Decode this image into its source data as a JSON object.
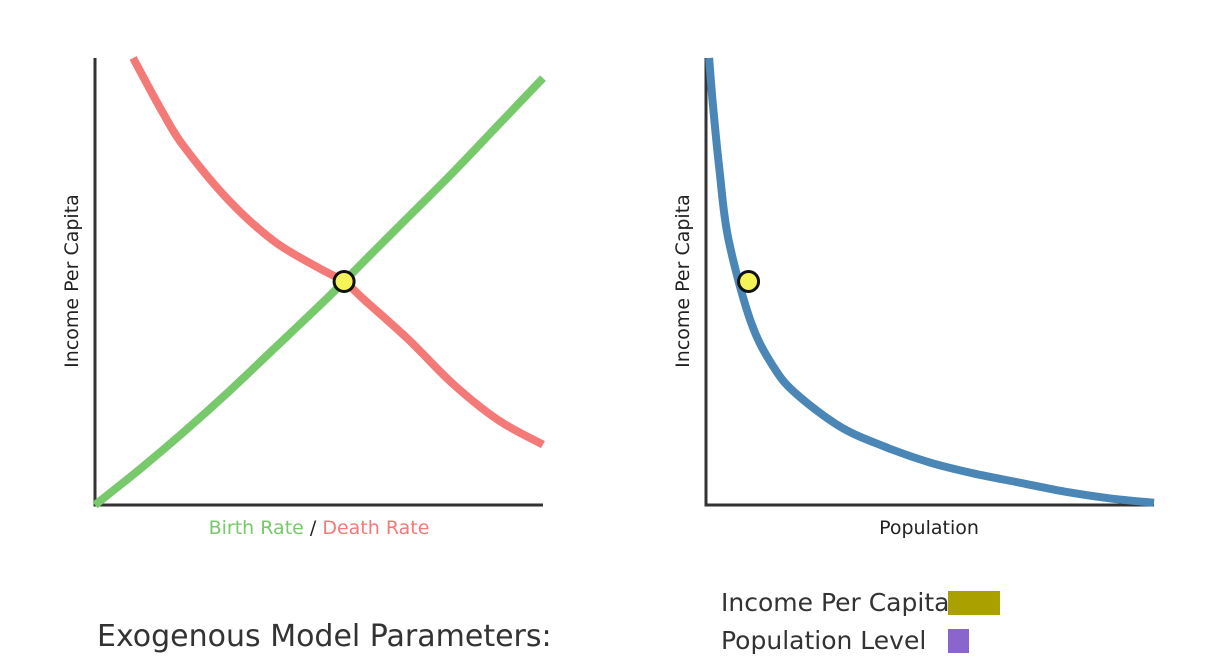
{
  "chart_data": [
    {
      "type": "line",
      "ylabel": "Income Per Capita",
      "xlabel_parts": [
        {
          "text": "Birth Rate",
          "color": "#78c86c"
        },
        {
          "text": " / ",
          "color": "#222222"
        },
        {
          "text": "Death Rate",
          "color": "#f47a78"
        }
      ],
      "xlim": [
        0,
        1
      ],
      "ylim": [
        0,
        1
      ],
      "series": [
        {
          "name": "Birth Rate",
          "color": "#78c86c",
          "x": [
            0,
            0.1,
            0.2,
            0.3,
            0.4,
            0.5,
            0.556,
            0.6,
            0.7,
            0.8,
            0.9,
            1.0
          ],
          "y": [
            0,
            0.08,
            0.165,
            0.255,
            0.35,
            0.445,
            0.5,
            0.545,
            0.645,
            0.745,
            0.85,
            0.955
          ]
        },
        {
          "name": "Death Rate",
          "color": "#f47a78",
          "x": [
            0.085,
            0.15,
            0.2,
            0.3,
            0.4,
            0.5,
            0.556,
            0.6,
            0.7,
            0.8,
            0.9,
            1.0
          ],
          "y": [
            1.0,
            0.88,
            0.8,
            0.68,
            0.59,
            0.53,
            0.5,
            0.46,
            0.37,
            0.27,
            0.19,
            0.135
          ]
        }
      ],
      "equilibrium": {
        "x": 0.556,
        "y": 0.5,
        "color": "#f4f45a"
      }
    },
    {
      "type": "line",
      "ylabel": "Income Per Capita",
      "xlabel": "Population",
      "xlim": [
        0,
        1
      ],
      "ylim": [
        0,
        1
      ],
      "series": [
        {
          "name": "Population",
          "color": "#4a86b6",
          "x": [
            0.007,
            0.015,
            0.03,
            0.05,
            0.1,
            0.15,
            0.2,
            0.3,
            0.4,
            0.5,
            0.6,
            0.7,
            0.8,
            0.9,
            1.0
          ],
          "y": [
            1.0,
            0.9,
            0.75,
            0.595,
            0.41,
            0.31,
            0.25,
            0.175,
            0.13,
            0.095,
            0.07,
            0.05,
            0.03,
            0.015,
            0.005
          ]
        }
      ],
      "equilibrium": {
        "x": 0.095,
        "y": 0.5,
        "color": "#f4f45a"
      }
    }
  ],
  "params_title": "Exogenous Model Parameters:",
  "legend": [
    {
      "label": "Income Per Capita",
      "color": "#aaa000",
      "fraction": 1.0
    },
    {
      "label": "Population Level",
      "color": "#8a66cc",
      "fraction": 0.4
    }
  ]
}
